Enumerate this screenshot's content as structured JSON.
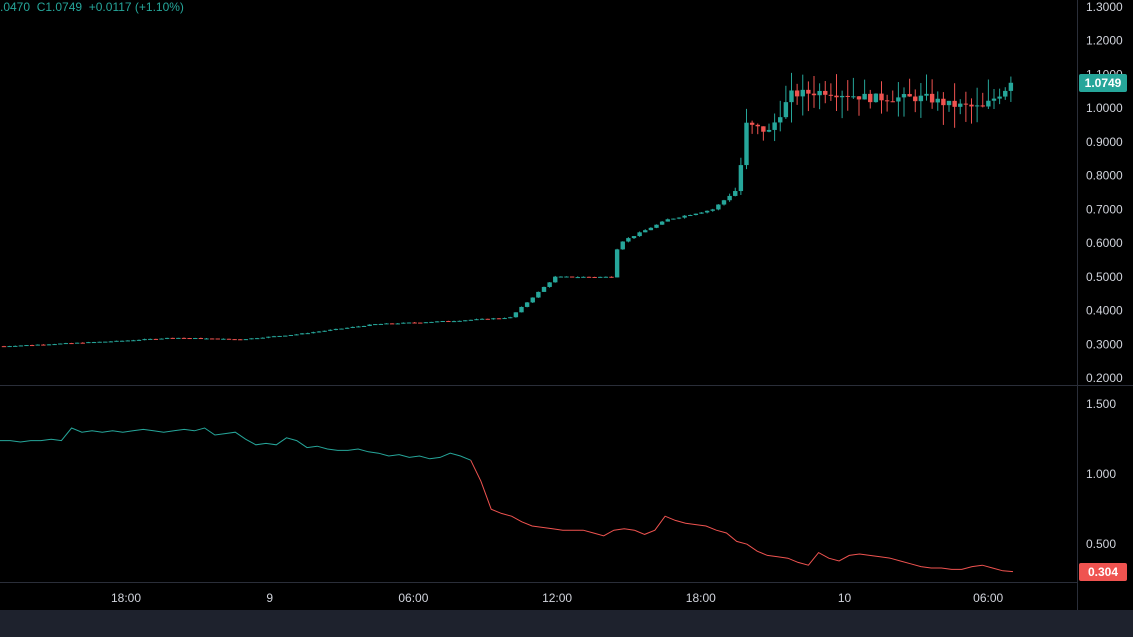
{
  "legend": {
    "open_partial": ".0470",
    "close_label": "C1.0749",
    "change": "+0.0117 (+1.10%)"
  },
  "colors": {
    "up": "#26a69a",
    "down": "#ef5350",
    "background": "#000000",
    "grid_line": "#2a2e39",
    "text": "#d1d4dc"
  },
  "chart_data": [
    {
      "type": "candlestick",
      "title": "",
      "ylim": [
        0.18,
        1.32
      ],
      "yticks": [
        "0.2000",
        "0.3000",
        "0.4000",
        "0.5000",
        "0.6000",
        "0.7000",
        "0.8000",
        "0.9000",
        "1.0000",
        "1.1000",
        "1.2000",
        "1.3000"
      ],
      "ytick_values": [
        0.2,
        0.3,
        0.4,
        0.5,
        0.6,
        0.7,
        0.8,
        0.9,
        1.0,
        1.1,
        1.2,
        1.3
      ],
      "last_price_label": "1.0749",
      "last_price": 1.0749,
      "start_price": 0.295,
      "interval_hours": 0.25,
      "time_start_hours": -13.9,
      "key_prices": [
        {
          "t": 0,
          "p": 0.295
        },
        {
          "t": 5,
          "p": 0.31
        },
        {
          "t": 7.5,
          "p": 0.32
        },
        {
          "t": 10.5,
          "p": 0.315
        },
        {
          "t": 13.0,
          "p": 0.33
        },
        {
          "t": 16.5,
          "p": 0.36
        },
        {
          "t": 20.0,
          "p": 0.37
        },
        {
          "t": 22.5,
          "p": 0.38
        },
        {
          "t": 24.5,
          "p": 0.5
        },
        {
          "t": 27.0,
          "p": 0.5
        },
        {
          "t": 27.3,
          "p": 0.6
        },
        {
          "t": 29.5,
          "p": 0.67
        },
        {
          "t": 31.5,
          "p": 0.7
        },
        {
          "t": 32.6,
          "p": 0.76
        },
        {
          "t": 33.0,
          "p": 0.95
        },
        {
          "t": 34.0,
          "p": 0.93
        },
        {
          "t": 35.0,
          "p": 1.04
        },
        {
          "t": 36.5,
          "p": 1.05
        },
        {
          "t": 38.5,
          "p": 1.03
        },
        {
          "t": 41.0,
          "p": 1.03
        },
        {
          "t": 42.0,
          "p": 1.01
        },
        {
          "t": 43.5,
          "p": 1.0
        },
        {
          "t": 44.8,
          "p": 1.0749
        }
      ]
    },
    {
      "type": "line",
      "title": "",
      "ylim": [
        0.23,
        1.63
      ],
      "yticks": [
        "0.500",
        "1.000",
        "1.500"
      ],
      "ytick_values": [
        0.5,
        1.0,
        1.5
      ],
      "last_value_label": "0.304",
      "last_value": 0.304,
      "switch_index": 46,
      "values": [
        1.24,
        1.24,
        1.23,
        1.24,
        1.24,
        1.25,
        1.24,
        1.33,
        1.3,
        1.31,
        1.3,
        1.31,
        1.3,
        1.31,
        1.32,
        1.31,
        1.3,
        1.31,
        1.32,
        1.31,
        1.33,
        1.28,
        1.29,
        1.3,
        1.25,
        1.21,
        1.22,
        1.21,
        1.26,
        1.24,
        1.19,
        1.2,
        1.18,
        1.17,
        1.17,
        1.18,
        1.16,
        1.15,
        1.13,
        1.14,
        1.12,
        1.13,
        1.11,
        1.12,
        1.15,
        1.13,
        1.1,
        0.95,
        0.75,
        0.72,
        0.7,
        0.66,
        0.63,
        0.62,
        0.61,
        0.6,
        0.6,
        0.6,
        0.58,
        0.56,
        0.6,
        0.61,
        0.6,
        0.57,
        0.6,
        0.7,
        0.67,
        0.65,
        0.64,
        0.63,
        0.6,
        0.58,
        0.52,
        0.5,
        0.45,
        0.42,
        0.41,
        0.4,
        0.37,
        0.35,
        0.44,
        0.4,
        0.38,
        0.42,
        0.43,
        0.42,
        0.41,
        0.4,
        0.38,
        0.36,
        0.34,
        0.33,
        0.33,
        0.32,
        0.32,
        0.34,
        0.35,
        0.33,
        0.31,
        0.304
      ]
    }
  ],
  "x_axis": {
    "ticks": [
      {
        "label": "18:00",
        "hours": 18
      },
      {
        "label": "9",
        "hours": 24
      },
      {
        "label": "06:00",
        "hours": 30
      },
      {
        "label": "12:00",
        "hours": 36
      },
      {
        "label": "18:00",
        "hours": 42
      },
      {
        "label": "10",
        "hours": 48
      },
      {
        "label": "06:00",
        "hours": 54
      }
    ]
  }
}
